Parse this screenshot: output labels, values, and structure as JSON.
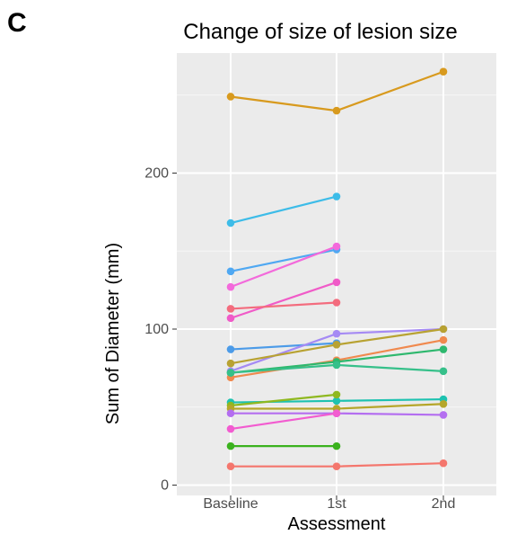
{
  "panel_label": "C",
  "chart_data": {
    "type": "line",
    "title": "Change of size of lesion size",
    "xlabel": "Assessment",
    "ylabel": "Sum of Diameter (mm)",
    "categories": [
      "Baseline",
      "1st",
      "2nd"
    ],
    "ylim": [
      0,
      270
    ],
    "yticks": [
      0,
      100,
      200
    ],
    "grid": true,
    "legend": "none",
    "series": [
      {
        "color": "#D89A1E",
        "values": [
          249,
          240,
          265
        ]
      },
      {
        "color": "#3DBCE8",
        "values": [
          168,
          185,
          null
        ]
      },
      {
        "color": "#4FA8F2",
        "values": [
          137,
          151,
          null
        ]
      },
      {
        "color": "#F36ADB",
        "values": [
          127,
          153,
          null
        ]
      },
      {
        "color": "#F05BC8",
        "values": [
          107,
          130,
          null
        ]
      },
      {
        "color": "#F36C7E",
        "values": [
          113,
          117,
          null
        ]
      },
      {
        "color": "#4C9BE8",
        "values": [
          87,
          91,
          null
        ]
      },
      {
        "color": "#A58AF4",
        "values": [
          73,
          97,
          100
        ]
      },
      {
        "color": "#B8A232",
        "values": [
          78,
          90,
          100
        ]
      },
      {
        "color": "#F0894E",
        "values": [
          69,
          80,
          93
        ]
      },
      {
        "color": "#2EB86E",
        "values": [
          72,
          79,
          87
        ]
      },
      {
        "color": "#36C08A",
        "values": [
          72,
          77,
          73
        ]
      },
      {
        "color": "#1EC2B0",
        "values": [
          53,
          54,
          55
        ]
      },
      {
        "color": "#8FB820",
        "values": [
          51,
          58,
          null
        ]
      },
      {
        "color": "#B5A62A",
        "values": [
          49,
          49,
          52
        ]
      },
      {
        "color": "#B46EF0",
        "values": [
          46,
          46,
          45
        ]
      },
      {
        "color": "#F25CD0",
        "values": [
          36,
          46,
          null
        ]
      },
      {
        "color": "#3BB21E",
        "values": [
          25,
          25,
          null
        ]
      },
      {
        "color": "#F4766D",
        "values": [
          12,
          12,
          14
        ]
      }
    ]
  }
}
